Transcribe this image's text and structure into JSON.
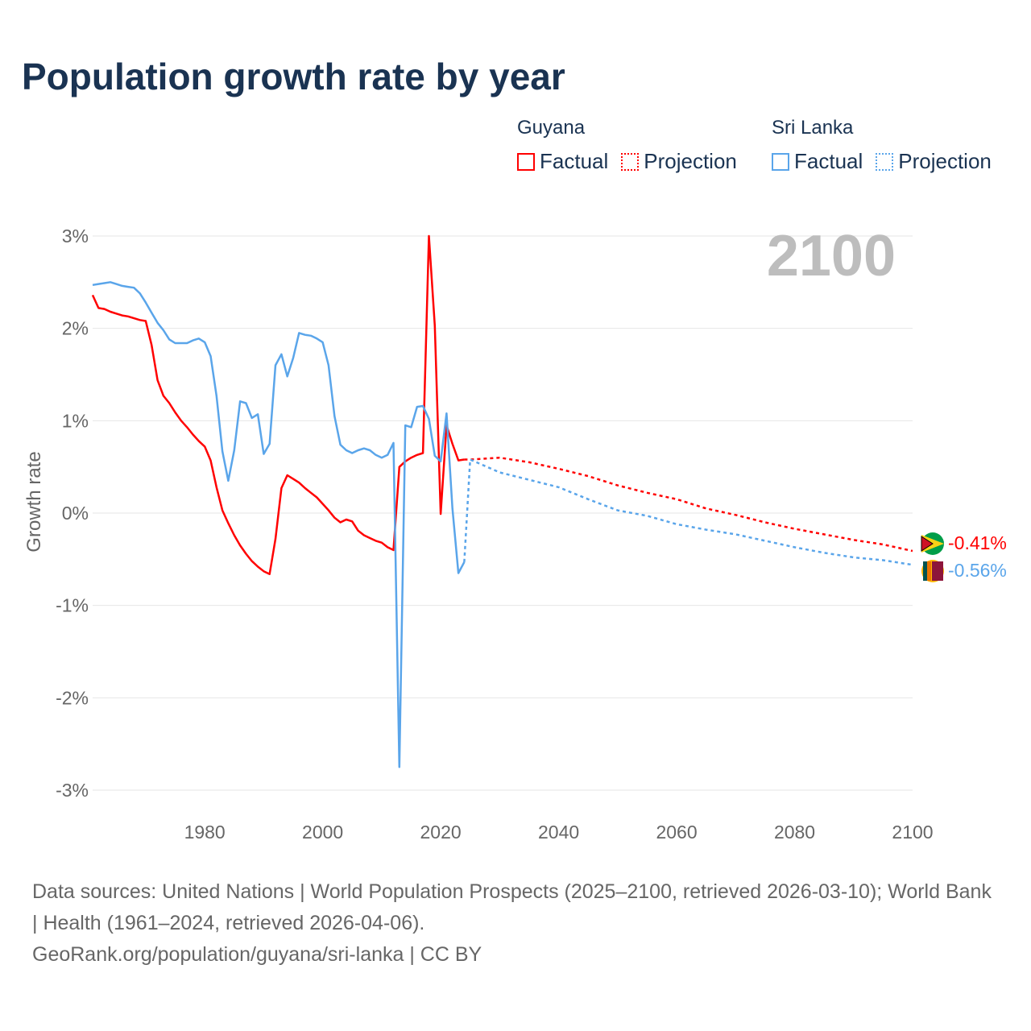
{
  "title": "Population growth rate by year",
  "legend": {
    "groups": [
      {
        "name": "Guyana",
        "factual": "Factual",
        "projection": "Projection",
        "color": "#ff0000"
      },
      {
        "name": "Sri Lanka",
        "factual": "Factual",
        "projection": "Projection",
        "color": "#5aa5ea"
      }
    ]
  },
  "year_label": "2100",
  "end_labels": {
    "guyana": "-0.41%",
    "sri_lanka": "-0.56%"
  },
  "footer": {
    "line1": "Data sources: United Nations | World Population Prospects (2025–2100, retrieved 2026-03-10); World Bank | Health (1961–2024, retrieved 2026-04-06).",
    "line2": "GeoRank.org/population/guyana/sri-lanka | CC BY"
  },
  "chart_data": {
    "type": "line",
    "title": "Population growth rate by year",
    "xlabel": "",
    "ylabel": "Growth rate",
    "xlim": [
      1961,
      2100
    ],
    "ylim": [
      -3.2,
      3.2
    ],
    "x_ticks": [
      1980,
      2000,
      2020,
      2040,
      2060,
      2080,
      2100
    ],
    "x_tick_labels": [
      "1980",
      "2000",
      "2020",
      "2040",
      "2060",
      "2080",
      "2100"
    ],
    "y_ticks": [
      3,
      2,
      1,
      0,
      -1,
      -2,
      -3
    ],
    "y_tick_labels": [
      "3%",
      "2%",
      "1%",
      "0%",
      "-1%",
      "-2%",
      "-3%"
    ],
    "grid": true,
    "legend_position": "top-right",
    "series": [
      {
        "name": "Guyana Factual",
        "color": "#ff0000",
        "style": "solid",
        "x": [
          1961,
          1962,
          1963,
          1964,
          1965,
          1966,
          1967,
          1968,
          1969,
          1970,
          1971,
          1972,
          1973,
          1974,
          1975,
          1976,
          1977,
          1978,
          1979,
          1980,
          1981,
          1982,
          1983,
          1984,
          1985,
          1986,
          1987,
          1988,
          1989,
          1990,
          1991,
          1992,
          1993,
          1994,
          1995,
          1996,
          1997,
          1998,
          1999,
          2000,
          2001,
          2002,
          2003,
          2004,
          2005,
          2006,
          2007,
          2008,
          2009,
          2010,
          2011,
          2012,
          2013,
          2014,
          2015,
          2016,
          2017,
          2018,
          2019,
          2020,
          2021,
          2022,
          2023,
          2024
        ],
        "values": [
          2.36,
          2.22,
          2.21,
          2.18,
          2.16,
          2.14,
          2.13,
          2.11,
          2.09,
          2.08,
          1.82,
          1.44,
          1.27,
          1.19,
          1.09,
          1.0,
          0.93,
          0.85,
          0.78,
          0.72,
          0.57,
          0.28,
          0.03,
          -0.11,
          -0.24,
          -0.35,
          -0.44,
          -0.52,
          -0.58,
          -0.63,
          -0.66,
          -0.28,
          0.27,
          0.41,
          0.37,
          0.33,
          0.27,
          0.22,
          0.17,
          0.1,
          0.03,
          -0.05,
          -0.1,
          -0.07,
          -0.09,
          -0.19,
          -0.24,
          -0.27,
          -0.3,
          -0.32,
          -0.37,
          -0.4,
          0.5,
          0.56,
          0.6,
          0.63,
          0.65,
          3.0,
          2.03,
          -0.01,
          0.95,
          0.75,
          0.57,
          0.58
        ]
      },
      {
        "name": "Guyana Projection",
        "color": "#ff0000",
        "style": "dotted",
        "x": [
          2024,
          2025,
          2030,
          2035,
          2040,
          2045,
          2050,
          2055,
          2060,
          2065,
          2070,
          2075,
          2080,
          2085,
          2090,
          2095,
          2100
        ],
        "values": [
          0.58,
          0.58,
          0.6,
          0.55,
          0.48,
          0.4,
          0.3,
          0.22,
          0.15,
          0.05,
          -0.02,
          -0.1,
          -0.17,
          -0.23,
          -0.29,
          -0.34,
          -0.41
        ]
      },
      {
        "name": "Sri Lanka Factual",
        "color": "#5aa5ea",
        "style": "solid",
        "x": [
          1961,
          1962,
          1963,
          1964,
          1965,
          1966,
          1967,
          1968,
          1969,
          1970,
          1971,
          1972,
          1973,
          1974,
          1975,
          1976,
          1977,
          1978,
          1979,
          1980,
          1981,
          1982,
          1983,
          1984,
          1985,
          1986,
          1987,
          1988,
          1989,
          1990,
          1991,
          1992,
          1993,
          1994,
          1995,
          1996,
          1997,
          1998,
          1999,
          2000,
          2001,
          2002,
          2003,
          2004,
          2005,
          2006,
          2007,
          2008,
          2009,
          2010,
          2011,
          2012,
          2013,
          2014,
          2015,
          2016,
          2017,
          2018,
          2019,
          2020,
          2021,
          2022,
          2023,
          2024
        ],
        "values": [
          2.47,
          2.48,
          2.49,
          2.5,
          2.48,
          2.46,
          2.45,
          2.44,
          2.38,
          2.28,
          2.17,
          2.06,
          1.98,
          1.88,
          1.84,
          1.84,
          1.84,
          1.87,
          1.89,
          1.85,
          1.7,
          1.27,
          0.67,
          0.35,
          0.68,
          1.21,
          1.19,
          1.03,
          1.07,
          0.64,
          0.75,
          1.6,
          1.72,
          1.48,
          1.68,
          1.95,
          1.93,
          1.92,
          1.89,
          1.85,
          1.6,
          1.05,
          0.74,
          0.68,
          0.65,
          0.68,
          0.7,
          0.68,
          0.63,
          0.6,
          0.63,
          0.76,
          -2.75,
          0.95,
          0.93,
          1.15,
          1.16,
          1.02,
          0.62,
          0.56,
          1.08,
          0.05,
          -0.65,
          -0.53
        ]
      },
      {
        "name": "Sri Lanka Projection",
        "color": "#5aa5ea",
        "style": "dotted",
        "x": [
          2024,
          2025,
          2030,
          2035,
          2040,
          2045,
          2050,
          2055,
          2060,
          2065,
          2070,
          2075,
          2080,
          2085,
          2090,
          2095,
          2100
        ],
        "values": [
          -0.53,
          0.58,
          0.44,
          0.36,
          0.28,
          0.15,
          0.03,
          -0.03,
          -0.12,
          -0.18,
          -0.23,
          -0.3,
          -0.37,
          -0.43,
          -0.48,
          -0.51,
          -0.56
        ]
      }
    ]
  }
}
